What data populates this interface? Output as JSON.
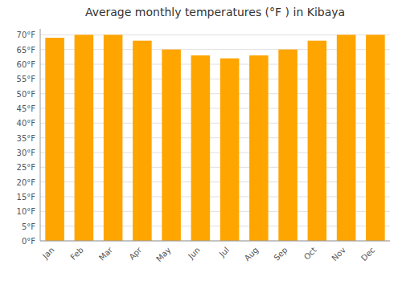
{
  "chart_data": {
    "type": "bar",
    "title": "Average monthly temperatures (°F ) in Kibaya",
    "categories": [
      "Jan",
      "Feb",
      "Mar",
      "Apr",
      "May",
      "Jun",
      "Jul",
      "Aug",
      "Sep",
      "Oct",
      "Nov",
      "Dec"
    ],
    "values": [
      69,
      70,
      70,
      68,
      65,
      63,
      62,
      63,
      65,
      68,
      70,
      70
    ],
    "color": "#FFA500",
    "ylim": [
      0,
      72
    ],
    "yticks": [
      {
        "value": 0,
        "label": "0°F"
      },
      {
        "value": 5,
        "label": "5°F"
      },
      {
        "value": 10,
        "label": "10°F"
      },
      {
        "value": 15,
        "label": "15°F"
      },
      {
        "value": 20,
        "label": "20°F"
      },
      {
        "value": 25,
        "label": "25°F"
      },
      {
        "value": 30,
        "label": "30°F"
      },
      {
        "value": 35,
        "label": "35°F"
      },
      {
        "value": 40,
        "label": "40°F"
      },
      {
        "value": 45,
        "label": "45°F"
      },
      {
        "value": 50,
        "label": "50°F"
      },
      {
        "value": 55,
        "label": "55°F"
      },
      {
        "value": 60,
        "label": "60°F"
      },
      {
        "value": 65,
        "label": "65°F"
      },
      {
        "value": 70,
        "label": "70°F"
      }
    ],
    "grid": true
  }
}
